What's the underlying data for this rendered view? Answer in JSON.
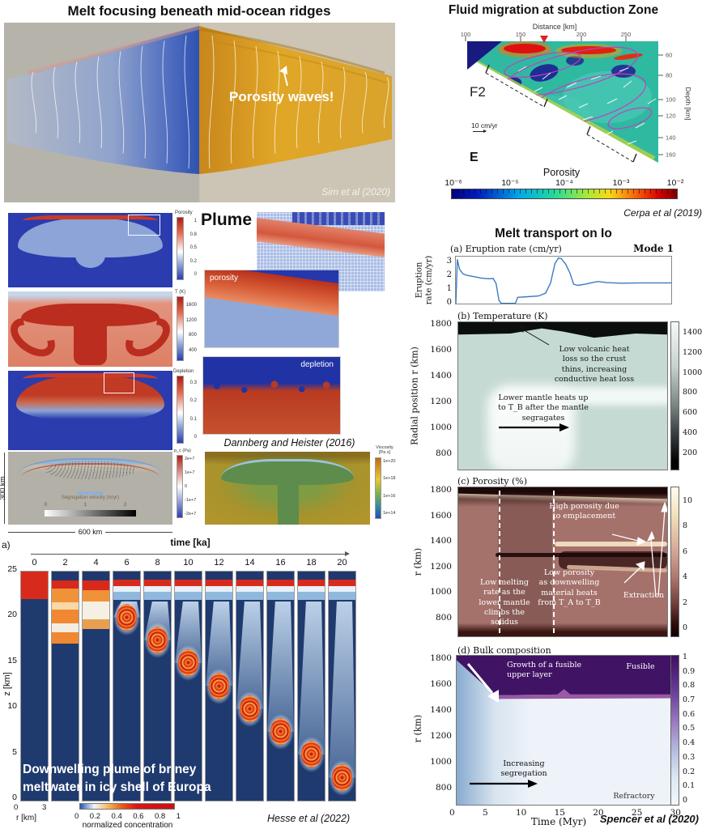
{
  "sim": {
    "title": "Melt focusing beneath mid-ocean ridges",
    "annotation": "Porosity waves!",
    "citation": "Sim et al (2020)"
  },
  "cerpa": {
    "title": "Fluid migration at subduction Zone",
    "panel_label": "F2",
    "scale_label": "10 cm/yr",
    "e_label": "E",
    "citation": "Cerpa et al (2019)"
  },
  "plume": {
    "label": "Plume",
    "citation": "Dannberg and Heister (2016)",
    "colorbars": [
      {
        "title": "Porosity",
        "ticks": [
          "1",
          "0.8",
          "0.5",
          "0.2",
          "0"
        ]
      },
      {
        "title": "T (K)",
        "ticks": [
          "1600",
          "1200",
          "800",
          "400"
        ]
      },
      {
        "title": "Depletion",
        "ticks": [
          "0.3",
          "0.2",
          "0.1",
          "0"
        ]
      }
    ],
    "inset_labels": [
      "porosity",
      "depletion"
    ],
    "seg": {
      "label": "Segregation velocity (m/yr)",
      "ticks": [
        "0",
        "1",
        "2"
      ]
    },
    "pc": {
      "title": "p_c (Pa)",
      "ticks": [
        "2e+7",
        "1e+7",
        "0",
        "-1e+7",
        "-2e+7"
      ]
    },
    "visc": {
      "title": "Viscosity\n[Pa s]",
      "ticks": [
        "1e+20",
        "1e+18",
        "1e+16",
        "1e+14"
      ]
    },
    "height_label": "300 km",
    "width_label": "600 km"
  },
  "europa": {
    "corner_label": "a)",
    "caption": "Downwelling plume of briney\nmeltwater in icy shell of Europa",
    "citation": "Hesse et al (2022)"
  },
  "io": {
    "title": "Melt transport on Io",
    "citation": "Spencer et al (2020)"
  },
  "chart_data": [
    {
      "id": "io-eruption",
      "type": "line",
      "title": "(a) Eruption rate (cm/yr)",
      "ylabel": "Eruption\nrate (cm/yr)",
      "xlim": [
        0,
        30
      ],
      "ylim": [
        0,
        3.4
      ],
      "yticks": [
        3,
        2,
        1,
        0
      ],
      "legend_position": "top-right",
      "series": [
        {
          "name": "Mode 1",
          "x": [
            0,
            0.2,
            0.5,
            1,
            1.5,
            2.5,
            3.5,
            4.5,
            5.2,
            5.6,
            6,
            6.3,
            8.3,
            8.6,
            10,
            11.5,
            12.5,
            13.2,
            13.8,
            14.3,
            14.7,
            15.3,
            15.9,
            16.4,
            17,
            18,
            19,
            19.8,
            21,
            23,
            26,
            30
          ],
          "y": [
            0,
            3.2,
            2.5,
            2.15,
            2.05,
            1.95,
            1.85,
            1.8,
            1.82,
            1.45,
            0.25,
            0.02,
            0.02,
            0.45,
            0.5,
            0.55,
            0.75,
            1.5,
            2.9,
            3.3,
            3.25,
            2.85,
            2.2,
            1.4,
            1.32,
            1.4,
            1.52,
            1.6,
            1.52,
            1.48,
            1.5,
            1.5
          ]
        }
      ]
    },
    {
      "id": "io-temperature",
      "type": "heatmap",
      "title": "(b) Temperature (K)",
      "ylabel": "Radial position r (km)",
      "yticks": [
        1800,
        1600,
        1400,
        1200,
        1000,
        800
      ],
      "colorbar_ticks": [
        1400,
        1200,
        1000,
        800,
        600,
        400,
        200
      ],
      "xlim": [
        0,
        30
      ],
      "annotations": {
        "crust": "Low volcanic heat\nloss so the crust\nthins, increasing\nconductive heat loss",
        "mantle": "Lower mantle heats up\nto T_B after the mantle\nsegragates"
      }
    },
    {
      "id": "io-porosity",
      "type": "heatmap",
      "title": "(c) Porosity (%)",
      "ylabel": "r (km)",
      "yticks": [
        1800,
        1600,
        1400,
        1200,
        1000,
        800
      ],
      "colorbar_ticks": [
        10,
        8,
        6,
        4,
        2,
        0
      ],
      "xlim": [
        0,
        30
      ],
      "annotations": {
        "high": "High porosity due\nto emplacement",
        "low": "Low porosity\nas downwelling\nmaterial heats\nfrom T_A to T_B",
        "extraction": "Extraction",
        "rate": "Low melting\nrate as the\nlower mantle\nclimbs the\nsolidus"
      }
    },
    {
      "id": "io-bulk-composition",
      "type": "heatmap",
      "title": "(d) Bulk composition",
      "xlabel": "Time (Myr)",
      "ylabel": "r (km)",
      "xticks": [
        0,
        5,
        10,
        15,
        20,
        25,
        30
      ],
      "yticks": [
        1800,
        1600,
        1400,
        1200,
        1000,
        800
      ],
      "colorbar_ticks": [
        1,
        0.9,
        0.8,
        0.7,
        0.6,
        0.5,
        0.4,
        0.3,
        0.2,
        0.1,
        0
      ],
      "annotations": {
        "growth": "Growth of a fusible\nupper layer",
        "fusible": "Fusible",
        "refractory": "Refractory",
        "segregation": "Increasing\nsegregation"
      }
    },
    {
      "id": "europa-downwelling",
      "type": "heatmap-sequence",
      "xlabel": "time [ka]",
      "times_ka": [
        0,
        2,
        4,
        6,
        8,
        10,
        12,
        14,
        16,
        18,
        20
      ],
      "ylabel": "z [km]",
      "yticks": [
        25,
        20,
        15,
        10,
        5,
        0
      ],
      "r_label": "r [km]",
      "r_ticks": [
        0,
        3
      ],
      "colorbar_label": "normalized concentration",
      "colorbar_ticks": [
        0,
        0.2,
        0.4,
        0.6,
        0.8,
        1
      ],
      "plume_center_z_km": [
        null,
        null,
        null,
        20,
        17.5,
        15,
        12.5,
        10,
        7.5,
        5,
        2.5
      ]
    },
    {
      "id": "cerpa-subduction",
      "type": "heatmap",
      "xlabel": "Distance [km]",
      "xticks": [
        100,
        150,
        200,
        250
      ],
      "ylabel": "Depth [km]",
      "yticks": [
        60,
        80,
        100,
        120,
        140,
        160
      ],
      "colorbar_label": "Porosity",
      "colorbar_ticks": [
        "10⁻⁶",
        "10⁻⁵",
        "10⁻⁴",
        "10⁻³",
        "10⁻²"
      ]
    }
  ]
}
